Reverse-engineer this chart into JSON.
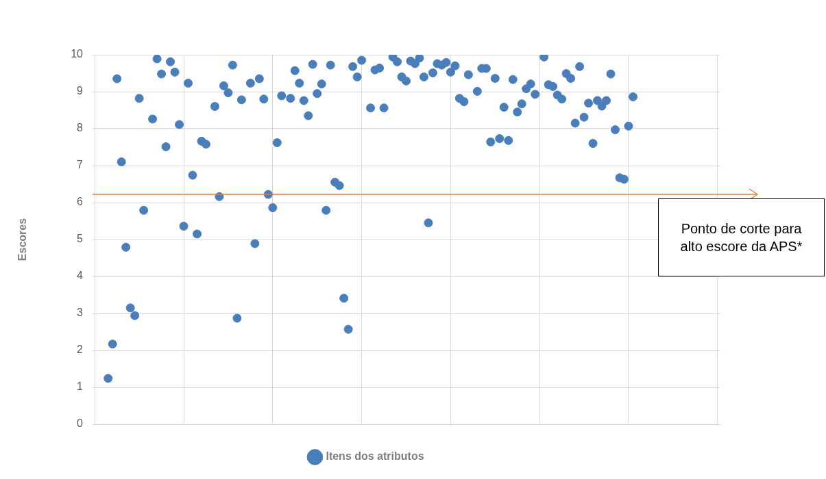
{
  "chart_data": {
    "type": "scatter",
    "ylabel": "Escores",
    "categories": [
      null,
      null,
      null,
      null,
      null,
      null,
      null,
      null,
      null,
      null,
      null,
      null,
      null,
      null,
      null,
      null,
      null,
      null,
      null,
      null,
      null,
      null,
      null,
      null,
      null,
      null,
      null,
      null,
      null,
      null,
      null,
      null,
      null,
      null,
      null,
      null,
      null,
      null,
      null,
      null,
      null,
      null,
      null,
      null,
      null,
      null,
      null,
      null,
      null,
      null,
      null,
      null,
      null,
      null,
      null,
      null,
      null,
      null,
      null,
      null,
      null,
      null,
      null,
      null,
      null,
      null,
      null,
      null,
      null,
      null,
      null,
      null,
      null,
      null,
      null,
      null,
      null,
      null,
      null,
      null,
      null,
      null,
      null,
      null,
      null,
      null,
      null,
      null,
      null,
      null,
      null,
      null,
      null,
      null,
      null,
      null,
      null,
      null,
      null,
      null,
      null,
      null,
      null,
      null,
      null,
      null,
      null,
      null,
      null,
      null,
      null,
      null,
      null,
      null,
      null,
      null,
      null,
      null,
      null,
      null,
      null,
      null,
      null,
      null,
      null,
      null,
      null,
      null,
      null,
      null,
      null,
      null,
      null,
      null,
      null,
      null,
      null,
      null,
      null,
      null,
      null
    ],
    "series": [
      {
        "name": "Itens dos atributos",
        "color": "#4a7ebb",
        "values": [
          null,
          null,
          null,
          1.24,
          2.17,
          9.35,
          7.1,
          4.79,
          3.15,
          2.94,
          8.82,
          5.79,
          null,
          8.26,
          9.89,
          9.48,
          7.51,
          9.81,
          9.53,
          8.11,
          5.36,
          9.23,
          6.74,
          5.15,
          7.66,
          7.58,
          null,
          8.6,
          6.16,
          9.16,
          8.97,
          9.72,
          2.87,
          8.78,
          null,
          9.23,
          4.89,
          9.35,
          8.8,
          6.22,
          5.86,
          7.62,
          8.89,
          null,
          8.82,
          9.57,
          9.23,
          8.76,
          8.35,
          9.74,
          8.95,
          9.21,
          5.79,
          9.72,
          6.55,
          6.46,
          3.41,
          2.57,
          9.68,
          9.4,
          9.85,
          null,
          8.56,
          9.59,
          9.64,
          8.56,
          null,
          9.94,
          9.81,
          9.4,
          9.29,
          9.83,
          9.76,
          9.91,
          9.4,
          5.45,
          9.51,
          9.76,
          9.72,
          9.79,
          9.53,
          9.7,
          8.82,
          8.73,
          9.46,
          null,
          9.01,
          9.63,
          9.63,
          7.64,
          9.36,
          7.73,
          8.58,
          7.68,
          9.33,
          8.45,
          8.67,
          9.08,
          9.21,
          8.93,
          null,
          9.94,
          9.19,
          9.14,
          8.91,
          8.8,
          9.49,
          9.36,
          8.15,
          9.68,
          8.31,
          8.69,
          7.6,
          8.76,
          8.61,
          8.76,
          9.48,
          7.97,
          6.67,
          6.63,
          8.07,
          8.86,
          null,
          null,
          null,
          null,
          null,
          null,
          null,
          null,
          null,
          null,
          null,
          null,
          null,
          null,
          null,
          null,
          null,
          null,
          null
        ]
      }
    ],
    "ylim": [
      0,
      10
    ],
    "yticks": [
      0,
      1,
      2,
      3,
      4,
      5,
      6,
      7,
      8,
      9,
      10
    ],
    "grid": true,
    "legend": "bottom",
    "marker": "circle",
    "ref_lines": [
      {
        "axis": "y",
        "value": 6.22,
        "label": "Ponto de corte para alto escore da APS*",
        "color": "#ed7d31"
      }
    ]
  }
}
